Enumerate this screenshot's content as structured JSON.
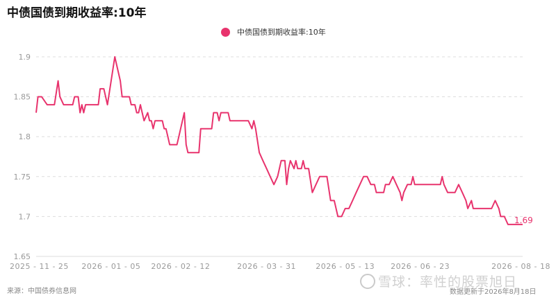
{
  "title": "中债国债到期收益率:10年",
  "source": "来源：中国债券信息网",
  "updated": "数据更新于2026年8月18日",
  "watermark": "雪球：率性的股票旭日",
  "colors": {
    "series": "#e8336d",
    "grid": "#dddddd",
    "axis_text": "#999999"
  },
  "chart_data": {
    "type": "line",
    "title": "中债国债到期收益率:10年",
    "legend": {
      "position": "top-center",
      "entries": [
        "中债国债到期收益率:10年"
      ]
    },
    "ylim": [
      1.65,
      1.9
    ],
    "y_ticks": [
      1.65,
      1.7,
      1.75,
      1.8,
      1.85,
      1.9
    ],
    "y_tick_labels": [
      "1.65",
      "1.7",
      "1.75",
      "1.8",
      "1.85",
      "1.9"
    ],
    "x_ticks": [
      "2025-11-25",
      "2026-01-05",
      "2026-02-12",
      "2026-03-31",
      "2026-05-13",
      "2026-06-23",
      "2026-08-18"
    ],
    "grid": true,
    "end_label": "1.69",
    "series": [
      {
        "name": "中债国债到期收益率:10年",
        "color": "#e8336d",
        "points": [
          [
            "2025-11-25",
            1.83
          ],
          [
            "2025-11-26",
            1.85
          ],
          [
            "2025-11-28",
            1.85
          ],
          [
            "2025-12-01",
            1.84
          ],
          [
            "2025-12-03",
            1.84
          ],
          [
            "2025-12-05",
            1.84
          ],
          [
            "2025-12-07",
            1.87
          ],
          [
            "2025-12-08",
            1.85
          ],
          [
            "2025-12-10",
            1.84
          ],
          [
            "2025-12-13",
            1.84
          ],
          [
            "2025-12-15",
            1.84
          ],
          [
            "2025-12-16",
            1.85
          ],
          [
            "2025-12-18",
            1.85
          ],
          [
            "2025-12-19",
            1.83
          ],
          [
            "2025-12-20",
            1.84
          ],
          [
            "2025-12-21",
            1.83
          ],
          [
            "2025-12-22",
            1.84
          ],
          [
            "2025-12-24",
            1.84
          ],
          [
            "2025-12-26",
            1.84
          ],
          [
            "2025-12-29",
            1.84
          ],
          [
            "2025-12-30",
            1.86
          ],
          [
            "2026-01-01",
            1.86
          ],
          [
            "2026-01-02",
            1.85
          ],
          [
            "2026-01-03",
            1.84
          ],
          [
            "2026-01-05",
            1.87
          ],
          [
            "2026-01-07",
            1.9
          ],
          [
            "2026-01-08",
            1.89
          ],
          [
            "2026-01-10",
            1.87
          ],
          [
            "2026-01-11",
            1.85
          ],
          [
            "2026-01-13",
            1.85
          ],
          [
            "2026-01-15",
            1.85
          ],
          [
            "2026-01-16",
            1.84
          ],
          [
            "2026-01-18",
            1.84
          ],
          [
            "2026-01-19",
            1.83
          ],
          [
            "2026-01-20",
            1.83
          ],
          [
            "2026-01-21",
            1.84
          ],
          [
            "2026-01-22",
            1.83
          ],
          [
            "2026-01-23",
            1.82
          ],
          [
            "2026-01-25",
            1.83
          ],
          [
            "2026-01-26",
            1.82
          ],
          [
            "2026-01-27",
            1.82
          ],
          [
            "2026-01-28",
            1.81
          ],
          [
            "2026-01-29",
            1.82
          ],
          [
            "2026-01-31",
            1.82
          ],
          [
            "2026-02-02",
            1.82
          ],
          [
            "2026-02-03",
            1.81
          ],
          [
            "2026-02-04",
            1.81
          ],
          [
            "2026-02-05",
            1.8
          ],
          [
            "2026-02-06",
            1.79
          ],
          [
            "2026-02-08",
            1.79
          ],
          [
            "2026-02-10",
            1.79
          ],
          [
            "2026-02-11",
            1.8
          ],
          [
            "2026-02-13",
            1.82
          ],
          [
            "2026-02-14",
            1.83
          ],
          [
            "2026-02-15",
            1.79
          ],
          [
            "2026-02-16",
            1.78
          ],
          [
            "2026-02-18",
            1.78
          ],
          [
            "2026-02-20",
            1.78
          ],
          [
            "2026-02-22",
            1.78
          ],
          [
            "2026-02-23",
            1.81
          ],
          [
            "2026-02-25",
            1.81
          ],
          [
            "2026-02-27",
            1.81
          ],
          [
            "2026-03-01",
            1.81
          ],
          [
            "2026-03-02",
            1.83
          ],
          [
            "2026-03-04",
            1.83
          ],
          [
            "2026-03-05",
            1.82
          ],
          [
            "2026-03-06",
            1.83
          ],
          [
            "2026-03-08",
            1.83
          ],
          [
            "2026-03-10",
            1.83
          ],
          [
            "2026-03-11",
            1.82
          ],
          [
            "2026-03-13",
            1.82
          ],
          [
            "2026-03-15",
            1.82
          ],
          [
            "2026-03-17",
            1.82
          ],
          [
            "2026-03-19",
            1.82
          ],
          [
            "2026-03-21",
            1.82
          ],
          [
            "2026-03-23",
            1.81
          ],
          [
            "2026-03-24",
            1.82
          ],
          [
            "2026-03-25",
            1.81
          ],
          [
            "2026-03-27",
            1.78
          ],
          [
            "2026-03-29",
            1.77
          ],
          [
            "2026-03-31",
            1.76
          ],
          [
            "2026-04-02",
            1.75
          ],
          [
            "2026-04-04",
            1.74
          ],
          [
            "2026-04-06",
            1.75
          ],
          [
            "2026-04-08",
            1.77
          ],
          [
            "2026-04-10",
            1.77
          ],
          [
            "2026-04-11",
            1.74
          ],
          [
            "2026-04-12",
            1.76
          ],
          [
            "2026-04-13",
            1.77
          ],
          [
            "2026-04-15",
            1.76
          ],
          [
            "2026-04-16",
            1.77
          ],
          [
            "2026-04-17",
            1.76
          ],
          [
            "2026-04-19",
            1.76
          ],
          [
            "2026-04-20",
            1.77
          ],
          [
            "2026-04-21",
            1.76
          ],
          [
            "2026-04-23",
            1.76
          ],
          [
            "2026-04-25",
            1.73
          ],
          [
            "2026-04-27",
            1.74
          ],
          [
            "2026-04-29",
            1.75
          ],
          [
            "2026-05-01",
            1.75
          ],
          [
            "2026-05-03",
            1.75
          ],
          [
            "2026-05-05",
            1.72
          ],
          [
            "2026-05-07",
            1.72
          ],
          [
            "2026-05-09",
            1.7
          ],
          [
            "2026-05-11",
            1.7
          ],
          [
            "2026-05-13",
            1.71
          ],
          [
            "2026-05-15",
            1.71
          ],
          [
            "2026-05-17",
            1.72
          ],
          [
            "2026-05-19",
            1.73
          ],
          [
            "2026-05-21",
            1.74
          ],
          [
            "2026-05-23",
            1.75
          ],
          [
            "2026-05-25",
            1.75
          ],
          [
            "2026-05-27",
            1.74
          ],
          [
            "2026-05-29",
            1.74
          ],
          [
            "2026-05-30",
            1.73
          ],
          [
            "2026-06-01",
            1.73
          ],
          [
            "2026-06-03",
            1.73
          ],
          [
            "2026-06-04",
            1.74
          ],
          [
            "2026-06-06",
            1.74
          ],
          [
            "2026-06-08",
            1.75
          ],
          [
            "2026-06-10",
            1.74
          ],
          [
            "2026-06-12",
            1.73
          ],
          [
            "2026-06-13",
            1.72
          ],
          [
            "2026-06-14",
            1.73
          ],
          [
            "2026-06-16",
            1.74
          ],
          [
            "2026-06-18",
            1.74
          ],
          [
            "2026-06-19",
            1.75
          ],
          [
            "2026-06-20",
            1.74
          ],
          [
            "2026-06-22",
            1.74
          ],
          [
            "2026-06-24",
            1.74
          ],
          [
            "2026-06-26",
            1.74
          ],
          [
            "2026-06-28",
            1.74
          ],
          [
            "2026-06-30",
            1.74
          ],
          [
            "2026-07-02",
            1.74
          ],
          [
            "2026-07-04",
            1.74
          ],
          [
            "2026-07-05",
            1.75
          ],
          [
            "2026-07-06",
            1.74
          ],
          [
            "2026-07-08",
            1.73
          ],
          [
            "2026-07-10",
            1.73
          ],
          [
            "2026-07-12",
            1.73
          ],
          [
            "2026-07-14",
            1.74
          ],
          [
            "2026-07-16",
            1.73
          ],
          [
            "2026-07-18",
            1.72
          ],
          [
            "2026-07-19",
            1.71
          ],
          [
            "2026-07-21",
            1.72
          ],
          [
            "2026-07-22",
            1.71
          ],
          [
            "2026-07-24",
            1.71
          ],
          [
            "2026-07-26",
            1.71
          ],
          [
            "2026-07-28",
            1.71
          ],
          [
            "2026-07-30",
            1.71
          ],
          [
            "2026-08-01",
            1.71
          ],
          [
            "2026-08-03",
            1.72
          ],
          [
            "2026-08-05",
            1.71
          ],
          [
            "2026-08-06",
            1.7
          ],
          [
            "2026-08-08",
            1.7
          ],
          [
            "2026-08-10",
            1.69
          ],
          [
            "2026-08-12",
            1.69
          ],
          [
            "2026-08-15",
            1.69
          ],
          [
            "2026-08-17",
            1.69
          ],
          [
            "2026-08-18",
            1.69
          ]
        ]
      }
    ]
  }
}
